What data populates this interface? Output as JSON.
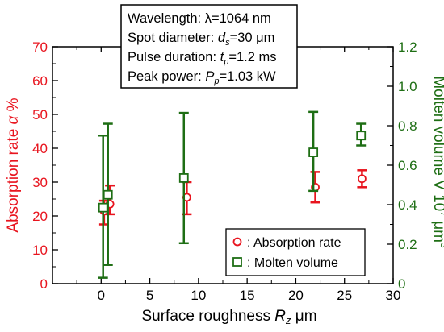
{
  "colors": {
    "absorption": "#e8141e",
    "molten": "#1e6e14",
    "axis": "#000000"
  },
  "chart_data": {
    "type": "scatter",
    "xlabel_main": "Surface roughness ",
    "xlabel_sym": "R",
    "xlabel_sub": "z",
    "xlabel_unit": "  μm",
    "ylabel_left_main": "Absorption rate ",
    "ylabel_left_sym": "α",
    "ylabel_left_unit": " %",
    "ylabel_right_main": "Molten volume V 10",
    "ylabel_right_sup": "7",
    "ylabel_right_unit": " μm",
    "ylabel_right_sup2": "3",
    "xlim": [
      -5,
      30
    ],
    "xticks": [
      0,
      5,
      10,
      15,
      20,
      25,
      30
    ],
    "ylim_left": [
      0,
      70
    ],
    "yticks_left": [
      0,
      10,
      20,
      30,
      40,
      50,
      60,
      70
    ],
    "ylim_right": [
      0,
      1.2
    ],
    "yticks_right": [
      "0",
      "0.2",
      "0.4",
      "0.6",
      "0.8",
      "1.0",
      "1.2"
    ],
    "yticks_right_vals": [
      0,
      0.2,
      0.4,
      0.6,
      0.8,
      1.0,
      1.2
    ],
    "infobox": [
      {
        "pre": "Wavelength: ",
        "sym": "",
        "sub": "",
        "post": "λ=1064 nm"
      },
      {
        "pre": "Spot diameter: ",
        "sym": "d",
        "sub": "s",
        "post": "=30 μm"
      },
      {
        "pre": "Pulse duration: ",
        "sym": "t",
        "sub": "p",
        "post": "=1.2 ms"
      },
      {
        "pre": "Peak power: ",
        "sym": "P",
        "sub": "p",
        "post": "=1.03 kW"
      }
    ],
    "series": [
      {
        "name": ": Absorption rate",
        "axis": "left",
        "marker": "circle",
        "points": [
          {
            "x": 0.3,
            "y": 21.5,
            "lo": 17.5,
            "hi": 24.5
          },
          {
            "x": 0.9,
            "y": 23.5,
            "lo": 20.5,
            "hi": 29.0
          },
          {
            "x": 8.8,
            "y": 25.5,
            "lo": 20.5,
            "hi": 30.0
          },
          {
            "x": 22.0,
            "y": 28.5,
            "lo": 24.0,
            "hi": 33.0
          },
          {
            "x": 26.8,
            "y": 31.0,
            "lo": 28.5,
            "hi": 33.5
          }
        ]
      },
      {
        "name": ": Molten volume",
        "axis": "right",
        "marker": "square",
        "points": [
          {
            "x": 0.2,
            "y": 0.385,
            "lo": 0.03,
            "hi": 0.75
          },
          {
            "x": 0.7,
            "y": 0.45,
            "lo": 0.095,
            "hi": 0.81
          },
          {
            "x": 8.5,
            "y": 0.535,
            "lo": 0.205,
            "hi": 0.865
          },
          {
            "x": 21.8,
            "y": 0.665,
            "lo": 0.47,
            "hi": 0.87
          },
          {
            "x": 26.7,
            "y": 0.75,
            "lo": 0.7,
            "hi": 0.81
          }
        ]
      }
    ]
  }
}
